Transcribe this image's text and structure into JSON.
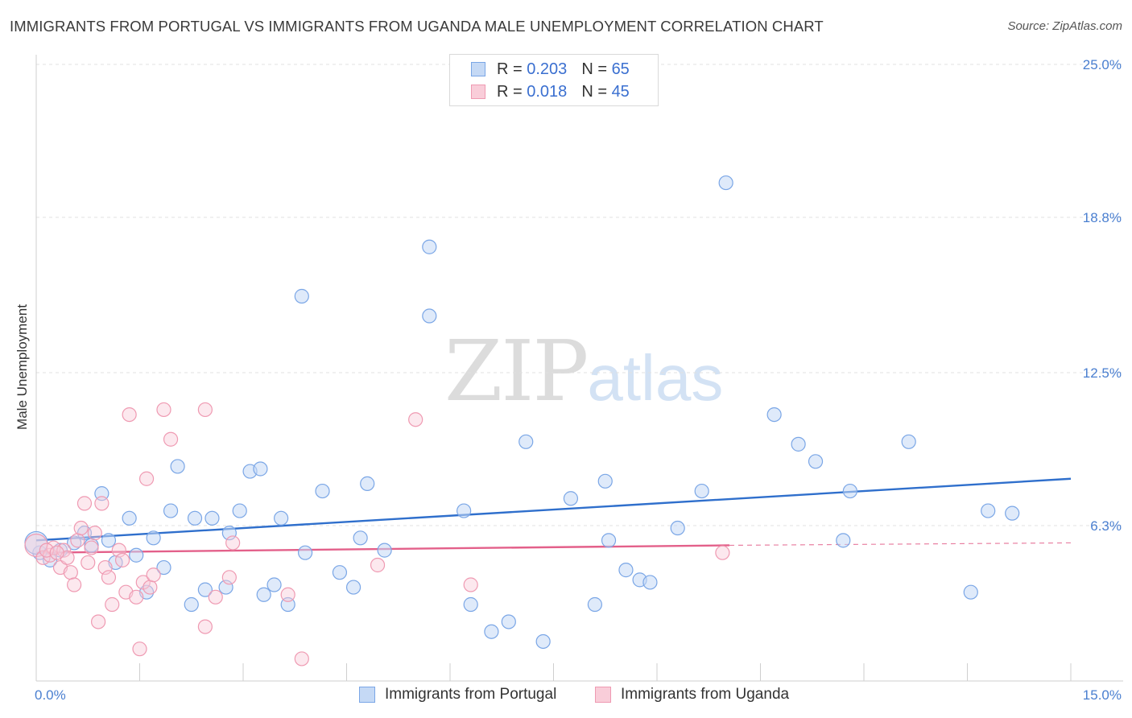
{
  "header": {
    "title": "IMMIGRANTS FROM PORTUGAL VS IMMIGRANTS FROM UGANDA MALE UNEMPLOYMENT CORRELATION CHART",
    "source": "Source: ZipAtlas.com"
  },
  "watermark": {
    "part1": "ZIP",
    "part2": "atlas"
  },
  "legend": {
    "r_label": "R =",
    "n_label": "N =",
    "series": [
      {
        "name": "Immigrants from Portugal",
        "r": "0.203",
        "n": "65",
        "fill": "#c5d9f5",
        "stroke": "#7aa6e6"
      },
      {
        "name": "Immigrants from Uganda",
        "r": "0.018",
        "n": "45",
        "fill": "#f9cdd9",
        "stroke": "#ef9ab2"
      }
    ]
  },
  "chart_data": {
    "type": "scatter",
    "title": "IMMIGRANTS FROM PORTUGAL VS IMMIGRANTS FROM UGANDA MALE UNEMPLOYMENT CORRELATION CHART",
    "xlabel": "",
    "ylabel": "Male Unemployment",
    "xlim": [
      0,
      15
    ],
    "ylim": [
      0,
      25.0
    ],
    "x_tick_labels": [
      "0.0%",
      "15.0%"
    ],
    "y_tick_values": [
      6.3,
      12.5,
      18.8,
      25.0
    ],
    "y_tick_labels": [
      "6.3%",
      "12.5%",
      "18.8%",
      "25.0%"
    ],
    "grid": true,
    "series": [
      {
        "name": "Immigrants from Portugal",
        "color": "#7aa6e6",
        "line_color": "#2f6fcc",
        "trend": {
          "x0": 0.0,
          "y0": 5.7,
          "x1": 15.0,
          "y1": 8.2
        },
        "points": [
          [
            0.05,
            5.2
          ],
          [
            0.2,
            4.9
          ],
          [
            0.35,
            5.3
          ],
          [
            0.55,
            5.6
          ],
          [
            0.7,
            6.0
          ],
          [
            0.8,
            5.5
          ],
          [
            0.95,
            7.6
          ],
          [
            1.05,
            5.7
          ],
          [
            1.15,
            4.8
          ],
          [
            1.35,
            6.6
          ],
          [
            1.45,
            5.1
          ],
          [
            1.6,
            3.6
          ],
          [
            1.7,
            5.8
          ],
          [
            1.85,
            4.6
          ],
          [
            1.95,
            6.9
          ],
          [
            2.05,
            8.7
          ],
          [
            2.25,
            3.1
          ],
          [
            2.3,
            6.6
          ],
          [
            2.45,
            3.7
          ],
          [
            2.55,
            6.6
          ],
          [
            2.75,
            3.8
          ],
          [
            2.8,
            6.0
          ],
          [
            2.95,
            6.9
          ],
          [
            3.1,
            8.5
          ],
          [
            3.25,
            8.6
          ],
          [
            3.3,
            3.5
          ],
          [
            3.45,
            3.9
          ],
          [
            3.55,
            6.6
          ],
          [
            3.65,
            3.1
          ],
          [
            3.85,
            15.6
          ],
          [
            3.9,
            5.2
          ],
          [
            4.15,
            7.7
          ],
          [
            4.4,
            4.4
          ],
          [
            4.6,
            3.8
          ],
          [
            4.7,
            5.8
          ],
          [
            4.8,
            8.0
          ],
          [
            5.05,
            5.3
          ],
          [
            5.7,
            17.6
          ],
          [
            5.7,
            14.8
          ],
          [
            6.2,
            6.9
          ],
          [
            6.3,
            3.1
          ],
          [
            6.6,
            2.0
          ],
          [
            6.85,
            2.4
          ],
          [
            7.1,
            9.7
          ],
          [
            7.35,
            1.6
          ],
          [
            7.75,
            7.4
          ],
          [
            8.1,
            3.1
          ],
          [
            8.25,
            8.1
          ],
          [
            8.3,
            5.7
          ],
          [
            8.55,
            4.5
          ],
          [
            8.75,
            4.1
          ],
          [
            8.9,
            4.0
          ],
          [
            9.3,
            6.2
          ],
          [
            9.65,
            7.7
          ],
          [
            10.0,
            20.2
          ],
          [
            10.7,
            10.8
          ],
          [
            11.05,
            9.6
          ],
          [
            11.3,
            8.9
          ],
          [
            11.7,
            5.7
          ],
          [
            11.8,
            7.7
          ],
          [
            12.65,
            9.7
          ],
          [
            13.55,
            3.6
          ],
          [
            13.8,
            6.9
          ],
          [
            14.15,
            6.8
          ],
          [
            0.0,
            5.6
          ]
        ]
      },
      {
        "name": "Immigrants from Uganda",
        "color": "#ef9ab2",
        "line_color": "#e3608a",
        "trend": {
          "x0": 0.0,
          "y0": 5.2,
          "x1": 10.05,
          "y1": 5.5
        },
        "trend_dashed": {
          "x0": 10.05,
          "y0": 5.5,
          "x1": 15.0,
          "y1": 5.6
        },
        "points": [
          [
            0.0,
            5.5
          ],
          [
            0.1,
            5.0
          ],
          [
            0.2,
            5.1
          ],
          [
            0.25,
            5.4
          ],
          [
            0.35,
            4.6
          ],
          [
            0.4,
            5.3
          ],
          [
            0.45,
            5.0
          ],
          [
            0.5,
            4.4
          ],
          [
            0.55,
            3.9
          ],
          [
            0.6,
            5.7
          ],
          [
            0.65,
            6.2
          ],
          [
            0.7,
            7.2
          ],
          [
            0.75,
            4.8
          ],
          [
            0.85,
            6.0
          ],
          [
            0.9,
            2.4
          ],
          [
            0.95,
            7.2
          ],
          [
            1.0,
            4.6
          ],
          [
            1.05,
            4.2
          ],
          [
            1.1,
            3.1
          ],
          [
            1.2,
            5.3
          ],
          [
            1.3,
            3.6
          ],
          [
            1.35,
            10.8
          ],
          [
            1.45,
            3.4
          ],
          [
            1.5,
            1.3
          ],
          [
            1.55,
            4.0
          ],
          [
            1.6,
            8.2
          ],
          [
            1.65,
            3.8
          ],
          [
            1.7,
            4.3
          ],
          [
            1.85,
            11.0
          ],
          [
            1.95,
            9.8
          ],
          [
            2.45,
            11.0
          ],
          [
            2.45,
            2.2
          ],
          [
            2.6,
            3.4
          ],
          [
            2.8,
            4.2
          ],
          [
            2.85,
            5.6
          ],
          [
            3.65,
            3.5
          ],
          [
            3.85,
            0.9
          ],
          [
            4.95,
            4.7
          ],
          [
            5.5,
            10.6
          ],
          [
            6.3,
            3.9
          ],
          [
            9.95,
            5.2
          ],
          [
            0.15,
            5.3
          ],
          [
            0.3,
            5.2
          ],
          [
            0.8,
            5.4
          ],
          [
            1.25,
            4.9
          ]
        ]
      }
    ]
  }
}
